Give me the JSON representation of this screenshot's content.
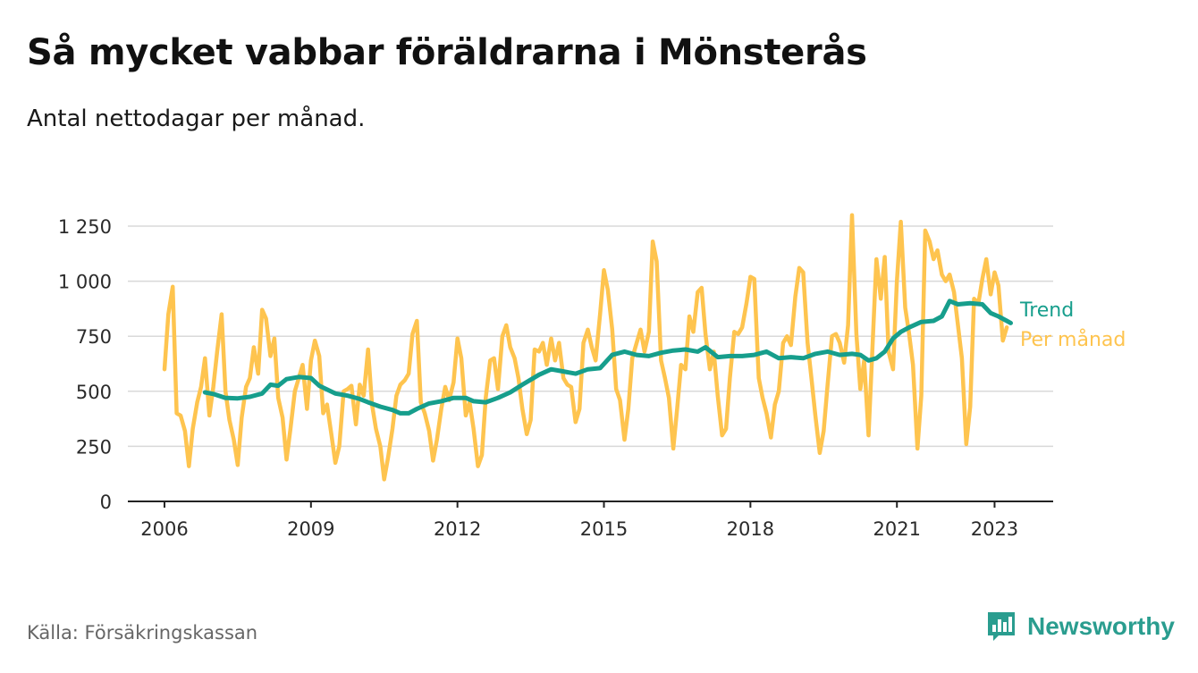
{
  "title": "Så mycket vabbar föräldrarna i Mönsterås",
  "subtitle": "Antal nettodagar per månad.",
  "source": "Källa: Försäkringskassan",
  "brand": {
    "name": "Newsworthy",
    "icon": "bar-chart-speech-bubble-icon",
    "color": "#2a9d8f"
  },
  "chart_data": {
    "type": "line",
    "xlim": [
      2005.25,
      2024.2
    ],
    "ylim": [
      0,
      1250
    ],
    "x_ticks": [
      2006,
      2009,
      2012,
      2015,
      2018,
      2021,
      2023
    ],
    "x_tick_labels": [
      "2006",
      "2009",
      "2012",
      "2015",
      "2018",
      "2021",
      "2023"
    ],
    "y_ticks": [
      0,
      250,
      500,
      750,
      1000,
      1250
    ],
    "y_tick_labels": [
      "0",
      "250",
      "500",
      "750",
      "1 000",
      "1 250"
    ],
    "grid": "horizontal",
    "legend": "right-end-labels",
    "series": [
      {
        "name": "Per månad",
        "color": "#fec44f",
        "points": [
          [
            2006.0,
            600
          ],
          [
            2006.08,
            850
          ],
          [
            2006.17,
            975
          ],
          [
            2006.25,
            400
          ],
          [
            2006.33,
            390
          ],
          [
            2006.42,
            320
          ],
          [
            2006.5,
            160
          ],
          [
            2006.58,
            330
          ],
          [
            2006.67,
            450
          ],
          [
            2006.75,
            520
          ],
          [
            2006.83,
            650
          ],
          [
            2006.92,
            390
          ],
          [
            2007.0,
            520
          ],
          [
            2007.08,
            680
          ],
          [
            2007.17,
            850
          ],
          [
            2007.25,
            500
          ],
          [
            2007.33,
            370
          ],
          [
            2007.42,
            280
          ],
          [
            2007.5,
            165
          ],
          [
            2007.58,
            380
          ],
          [
            2007.67,
            520
          ],
          [
            2007.75,
            560
          ],
          [
            2007.83,
            700
          ],
          [
            2007.92,
            580
          ],
          [
            2008.0,
            870
          ],
          [
            2008.08,
            830
          ],
          [
            2008.17,
            660
          ],
          [
            2008.25,
            740
          ],
          [
            2008.33,
            470
          ],
          [
            2008.42,
            380
          ],
          [
            2008.5,
            190
          ],
          [
            2008.58,
            330
          ],
          [
            2008.67,
            500
          ],
          [
            2008.75,
            560
          ],
          [
            2008.83,
            620
          ],
          [
            2008.92,
            420
          ],
          [
            2009.0,
            640
          ],
          [
            2009.08,
            730
          ],
          [
            2009.17,
            660
          ],
          [
            2009.25,
            400
          ],
          [
            2009.33,
            440
          ],
          [
            2009.42,
            300
          ],
          [
            2009.5,
            175
          ],
          [
            2009.58,
            250
          ],
          [
            2009.67,
            500
          ],
          [
            2009.75,
            510
          ],
          [
            2009.83,
            525
          ],
          [
            2009.92,
            350
          ],
          [
            2010.0,
            530
          ],
          [
            2010.08,
            480
          ],
          [
            2010.17,
            690
          ],
          [
            2010.25,
            440
          ],
          [
            2010.33,
            330
          ],
          [
            2010.42,
            250
          ],
          [
            2010.5,
            100
          ],
          [
            2010.58,
            200
          ],
          [
            2010.67,
            330
          ],
          [
            2010.75,
            480
          ],
          [
            2010.83,
            530
          ],
          [
            2010.92,
            550
          ],
          [
            2011.0,
            580
          ],
          [
            2011.08,
            760
          ],
          [
            2011.17,
            820
          ],
          [
            2011.25,
            450
          ],
          [
            2011.33,
            400
          ],
          [
            2011.42,
            320
          ],
          [
            2011.5,
            185
          ],
          [
            2011.58,
            280
          ],
          [
            2011.67,
            420
          ],
          [
            2011.75,
            520
          ],
          [
            2011.83,
            460
          ],
          [
            2011.92,
            540
          ],
          [
            2012.0,
            740
          ],
          [
            2012.08,
            650
          ],
          [
            2012.17,
            390
          ],
          [
            2012.25,
            450
          ],
          [
            2012.33,
            330
          ],
          [
            2012.42,
            160
          ],
          [
            2012.5,
            210
          ],
          [
            2012.58,
            470
          ],
          [
            2012.67,
            640
          ],
          [
            2012.75,
            650
          ],
          [
            2012.83,
            510
          ],
          [
            2012.92,
            750
          ],
          [
            2013.0,
            800
          ],
          [
            2013.08,
            700
          ],
          [
            2013.17,
            650
          ],
          [
            2013.25,
            560
          ],
          [
            2013.33,
            420
          ],
          [
            2013.42,
            305
          ],
          [
            2013.5,
            370
          ],
          [
            2013.58,
            690
          ],
          [
            2013.67,
            680
          ],
          [
            2013.75,
            720
          ],
          [
            2013.83,
            620
          ],
          [
            2013.92,
            740
          ],
          [
            2014.0,
            640
          ],
          [
            2014.08,
            720
          ],
          [
            2014.17,
            560
          ],
          [
            2014.25,
            530
          ],
          [
            2014.33,
            520
          ],
          [
            2014.42,
            360
          ],
          [
            2014.5,
            420
          ],
          [
            2014.58,
            720
          ],
          [
            2014.67,
            780
          ],
          [
            2014.75,
            700
          ],
          [
            2014.83,
            640
          ],
          [
            2014.92,
            850
          ],
          [
            2015.0,
            1050
          ],
          [
            2015.08,
            960
          ],
          [
            2015.17,
            780
          ],
          [
            2015.25,
            510
          ],
          [
            2015.33,
            460
          ],
          [
            2015.42,
            280
          ],
          [
            2015.5,
            420
          ],
          [
            2015.58,
            650
          ],
          [
            2015.67,
            720
          ],
          [
            2015.75,
            780
          ],
          [
            2015.83,
            680
          ],
          [
            2015.92,
            770
          ],
          [
            2016.0,
            1180
          ],
          [
            2016.08,
            1090
          ],
          [
            2016.17,
            640
          ],
          [
            2016.25,
            560
          ],
          [
            2016.33,
            470
          ],
          [
            2016.42,
            240
          ],
          [
            2016.5,
            420
          ],
          [
            2016.58,
            620
          ],
          [
            2016.67,
            600
          ],
          [
            2016.75,
            840
          ],
          [
            2016.83,
            770
          ],
          [
            2016.92,
            950
          ],
          [
            2017.0,
            970
          ],
          [
            2017.08,
            760
          ],
          [
            2017.17,
            600
          ],
          [
            2017.25,
            680
          ],
          [
            2017.33,
            480
          ],
          [
            2017.42,
            300
          ],
          [
            2017.5,
            330
          ],
          [
            2017.58,
            560
          ],
          [
            2017.67,
            770
          ],
          [
            2017.75,
            760
          ],
          [
            2017.83,
            790
          ],
          [
            2017.92,
            900
          ],
          [
            2018.0,
            1020
          ],
          [
            2018.08,
            1010
          ],
          [
            2018.17,
            560
          ],
          [
            2018.25,
            470
          ],
          [
            2018.33,
            400
          ],
          [
            2018.42,
            290
          ],
          [
            2018.5,
            440
          ],
          [
            2018.58,
            500
          ],
          [
            2018.67,
            720
          ],
          [
            2018.75,
            750
          ],
          [
            2018.83,
            710
          ],
          [
            2018.92,
            930
          ],
          [
            2019.0,
            1060
          ],
          [
            2019.08,
            1040
          ],
          [
            2019.17,
            720
          ],
          [
            2019.25,
            560
          ],
          [
            2019.33,
            390
          ],
          [
            2019.42,
            220
          ],
          [
            2019.5,
            320
          ],
          [
            2019.58,
            530
          ],
          [
            2019.67,
            750
          ],
          [
            2019.75,
            760
          ],
          [
            2019.83,
            720
          ],
          [
            2019.92,
            630
          ],
          [
            2020.0,
            800
          ],
          [
            2020.08,
            1300
          ],
          [
            2020.17,
            760
          ],
          [
            2020.25,
            510
          ],
          [
            2020.33,
            640
          ],
          [
            2020.42,
            300
          ],
          [
            2020.5,
            700
          ],
          [
            2020.58,
            1100
          ],
          [
            2020.67,
            920
          ],
          [
            2020.75,
            1110
          ],
          [
            2020.83,
            680
          ],
          [
            2020.92,
            600
          ],
          [
            2021.0,
            1000
          ],
          [
            2021.08,
            1270
          ],
          [
            2021.17,
            880
          ],
          [
            2021.25,
            760
          ],
          [
            2021.33,
            620
          ],
          [
            2021.42,
            240
          ],
          [
            2021.5,
            480
          ],
          [
            2021.58,
            1230
          ],
          [
            2021.67,
            1180
          ],
          [
            2021.75,
            1100
          ],
          [
            2021.83,
            1140
          ],
          [
            2021.92,
            1030
          ],
          [
            2022.0,
            1000
          ],
          [
            2022.08,
            1030
          ],
          [
            2022.17,
            950
          ],
          [
            2022.25,
            800
          ],
          [
            2022.33,
            650
          ],
          [
            2022.42,
            260
          ],
          [
            2022.5,
            430
          ],
          [
            2022.58,
            920
          ],
          [
            2022.67,
            900
          ],
          [
            2022.75,
            1010
          ],
          [
            2022.83,
            1100
          ],
          [
            2022.92,
            940
          ],
          [
            2023.0,
            1040
          ],
          [
            2023.08,
            980
          ],
          [
            2023.17,
            730
          ],
          [
            2023.25,
            790
          ]
        ]
      },
      {
        "name": "Trend",
        "color": "#169e8c",
        "points": [
          [
            2006.83,
            495
          ],
          [
            2007.0,
            488
          ],
          [
            2007.25,
            470
          ],
          [
            2007.5,
            468
          ],
          [
            2007.75,
            475
          ],
          [
            2008.0,
            490
          ],
          [
            2008.17,
            530
          ],
          [
            2008.33,
            525
          ],
          [
            2008.5,
            555
          ],
          [
            2008.75,
            565
          ],
          [
            2009.0,
            560
          ],
          [
            2009.17,
            525
          ],
          [
            2009.5,
            490
          ],
          [
            2009.75,
            480
          ],
          [
            2010.0,
            465
          ],
          [
            2010.17,
            450
          ],
          [
            2010.42,
            430
          ],
          [
            2010.67,
            415
          ],
          [
            2010.83,
            400
          ],
          [
            2011.0,
            400
          ],
          [
            2011.17,
            420
          ],
          [
            2011.42,
            445
          ],
          [
            2011.67,
            455
          ],
          [
            2011.92,
            470
          ],
          [
            2012.17,
            470
          ],
          [
            2012.33,
            455
          ],
          [
            2012.58,
            450
          ],
          [
            2012.83,
            470
          ],
          [
            2013.08,
            495
          ],
          [
            2013.33,
            530
          ],
          [
            2013.67,
            575
          ],
          [
            2013.92,
            600
          ],
          [
            2014.17,
            590
          ],
          [
            2014.42,
            580
          ],
          [
            2014.67,
            600
          ],
          [
            2014.92,
            605
          ],
          [
            2015.17,
            665
          ],
          [
            2015.42,
            680
          ],
          [
            2015.67,
            665
          ],
          [
            2015.92,
            660
          ],
          [
            2016.17,
            675
          ],
          [
            2016.42,
            685
          ],
          [
            2016.67,
            690
          ],
          [
            2016.92,
            680
          ],
          [
            2017.08,
            700
          ],
          [
            2017.33,
            655
          ],
          [
            2017.58,
            660
          ],
          [
            2017.83,
            660
          ],
          [
            2018.08,
            665
          ],
          [
            2018.33,
            680
          ],
          [
            2018.58,
            650
          ],
          [
            2018.83,
            655
          ],
          [
            2019.08,
            650
          ],
          [
            2019.33,
            670
          ],
          [
            2019.58,
            680
          ],
          [
            2019.83,
            665
          ],
          [
            2020.08,
            670
          ],
          [
            2020.25,
            665
          ],
          [
            2020.42,
            640
          ],
          [
            2020.58,
            650
          ],
          [
            2020.75,
            680
          ],
          [
            2020.92,
            740
          ],
          [
            2021.08,
            770
          ],
          [
            2021.25,
            790
          ],
          [
            2021.5,
            815
          ],
          [
            2021.75,
            820
          ],
          [
            2021.92,
            840
          ],
          [
            2022.08,
            910
          ],
          [
            2022.25,
            895
          ],
          [
            2022.5,
            900
          ],
          [
            2022.75,
            895
          ],
          [
            2022.92,
            855
          ],
          [
            2023.08,
            840
          ],
          [
            2023.25,
            820
          ],
          [
            2023.33,
            810
          ]
        ]
      }
    ]
  }
}
